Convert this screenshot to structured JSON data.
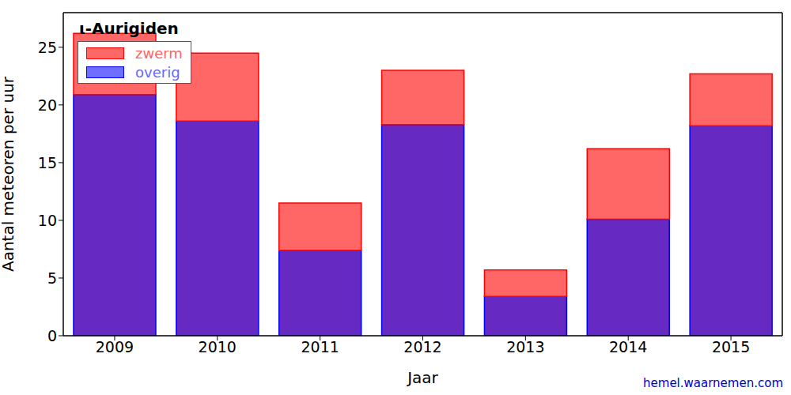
{
  "chart_data": {
    "type": "bar",
    "title": "ι-Aurigiden",
    "x_label": "Jaar",
    "y_label": "Aantal meteoren per uur",
    "annotation": "hemel.waarnemen.com",
    "categories": [
      "2009",
      "2010",
      "2011",
      "2012",
      "2013",
      "2014",
      "2015"
    ],
    "series": [
      {
        "name": "overig",
        "color": "#6629c2",
        "values": [
          20.9,
          18.6,
          7.4,
          18.3,
          3.4,
          10.1,
          18.2
        ]
      },
      {
        "name": "zwerm",
        "color": "#ff6666",
        "values": [
          5.3,
          5.9,
          4.1,
          4.7,
          2.3,
          6.1,
          4.5
        ]
      }
    ],
    "stacked": true,
    "ylim": [
      0,
      28
    ],
    "yticks": [
      0,
      5,
      10,
      15,
      20,
      25
    ],
    "legend": "upper left",
    "grid": false
  }
}
